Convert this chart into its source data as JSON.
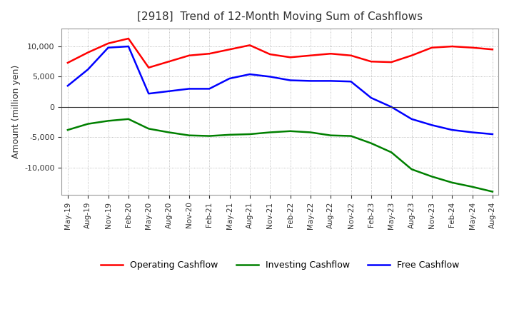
{
  "title": "[2918]  Trend of 12-Month Moving Sum of Cashflows",
  "ylabel": "Amount (million yen)",
  "xlabels": [
    "May-19",
    "Aug-19",
    "Nov-19",
    "Feb-20",
    "May-20",
    "Aug-20",
    "Nov-20",
    "Feb-21",
    "May-21",
    "Aug-21",
    "Nov-21",
    "Feb-22",
    "May-22",
    "Aug-22",
    "Nov-22",
    "Feb-23",
    "May-23",
    "Aug-23",
    "Nov-23",
    "Feb-24",
    "May-24",
    "Aug-24"
  ],
  "operating": [
    7300,
    9000,
    10500,
    11300,
    6500,
    7500,
    8500,
    8800,
    9500,
    10200,
    8700,
    8200,
    8500,
    8800,
    8500,
    7500,
    7400,
    8500,
    9800,
    10000,
    9800,
    9500
  ],
  "investing": [
    -3800,
    -2800,
    -2300,
    -2000,
    -3600,
    -4200,
    -4700,
    -4800,
    -4600,
    -4500,
    -4200,
    -4000,
    -4200,
    -4700,
    -4800,
    -6000,
    -7500,
    -10300,
    -11500,
    -12500,
    -13200,
    -14000
  ],
  "free": [
    3500,
    6200,
    9800,
    10000,
    2200,
    2600,
    3000,
    3000,
    4700,
    5400,
    5000,
    4400,
    4300,
    4300,
    4200,
    1500,
    0,
    -2000,
    -3000,
    -3800,
    -4200,
    -4500
  ],
  "operating_color": "#ff0000",
  "investing_color": "#008000",
  "free_color": "#0000ff",
  "ylim": [
    -14500,
    13000
  ],
  "yticks": [
    -10000,
    -5000,
    0,
    5000,
    10000
  ],
  "background_color": "#ffffff",
  "grid_color": "#aaaaaa",
  "line_width": 1.8
}
